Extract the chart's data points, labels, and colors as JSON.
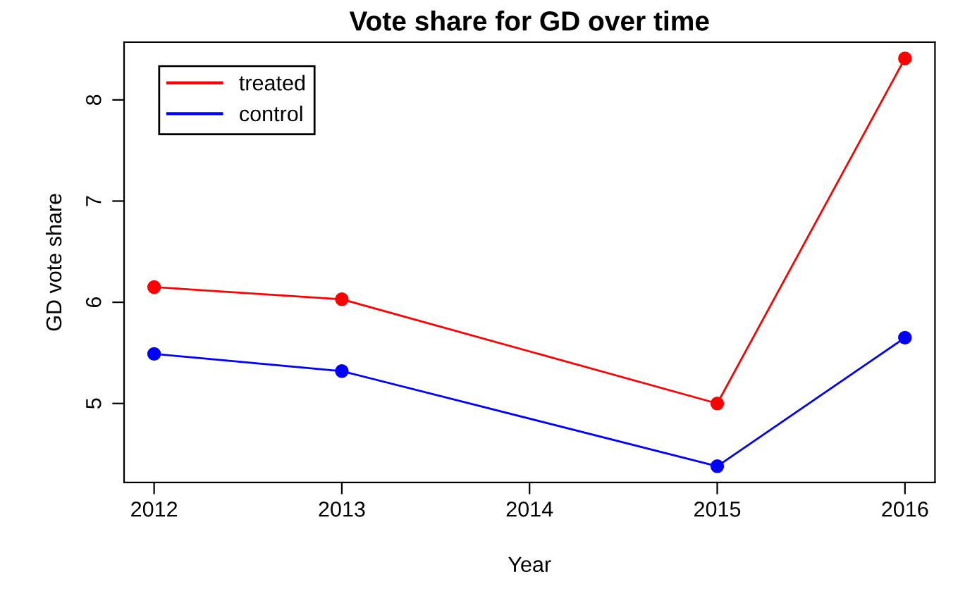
{
  "chart_data": {
    "type": "line",
    "title": "Vote share for GD over time",
    "xlabel": "Year",
    "ylabel": "GD vote share",
    "x": [
      2012,
      2013,
      2015,
      2016
    ],
    "series": [
      {
        "name": "treated",
        "color": "#ff0000",
        "values": [
          6.15,
          6.03,
          5.0,
          8.41
        ],
        "line_style": "solid"
      },
      {
        "name": "control",
        "color": "#0000ff",
        "values": [
          5.49,
          5.32,
          4.38,
          5.65
        ],
        "line_style": "solid"
      }
    ],
    "xlim": [
      2011.84,
      2016.16
    ],
    "ylim": [
      4.22,
      8.57
    ],
    "xticks": [
      2012,
      2013,
      2014,
      2015,
      2016
    ],
    "yticks": [
      5,
      6,
      7,
      8
    ],
    "marker": "circle",
    "legend": "top left",
    "grid": false
  }
}
